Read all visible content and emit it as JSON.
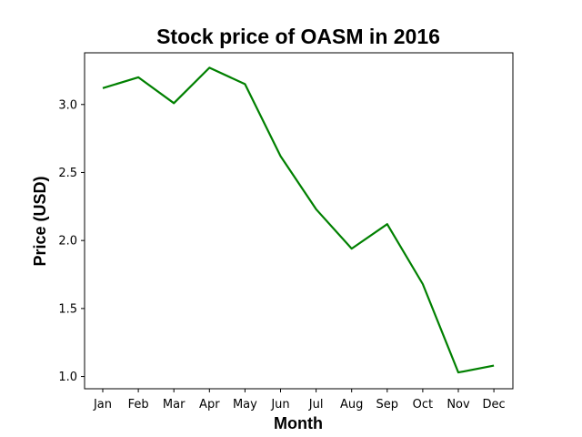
{
  "chart_data": {
    "type": "line",
    "title": "Stock price of OASM in 2016",
    "xlabel": "Month",
    "ylabel": "Price (USD)",
    "categories": [
      "Jan",
      "Feb",
      "Mar",
      "Apr",
      "May",
      "Jun",
      "Jul",
      "Aug",
      "Sep",
      "Oct",
      "Nov",
      "Dec"
    ],
    "series": [
      {
        "values": [
          3.12,
          3.2,
          3.01,
          3.27,
          3.15,
          2.62,
          2.23,
          1.94,
          2.12,
          1.68,
          1.03,
          1.08
        ],
        "color": "#008000"
      }
    ],
    "yticks": [
      "1.0",
      "1.5",
      "2.0",
      "2.5",
      "3.0"
    ],
    "ylim": [
      0.91,
      3.38
    ],
    "grid": false,
    "legend": "none"
  }
}
